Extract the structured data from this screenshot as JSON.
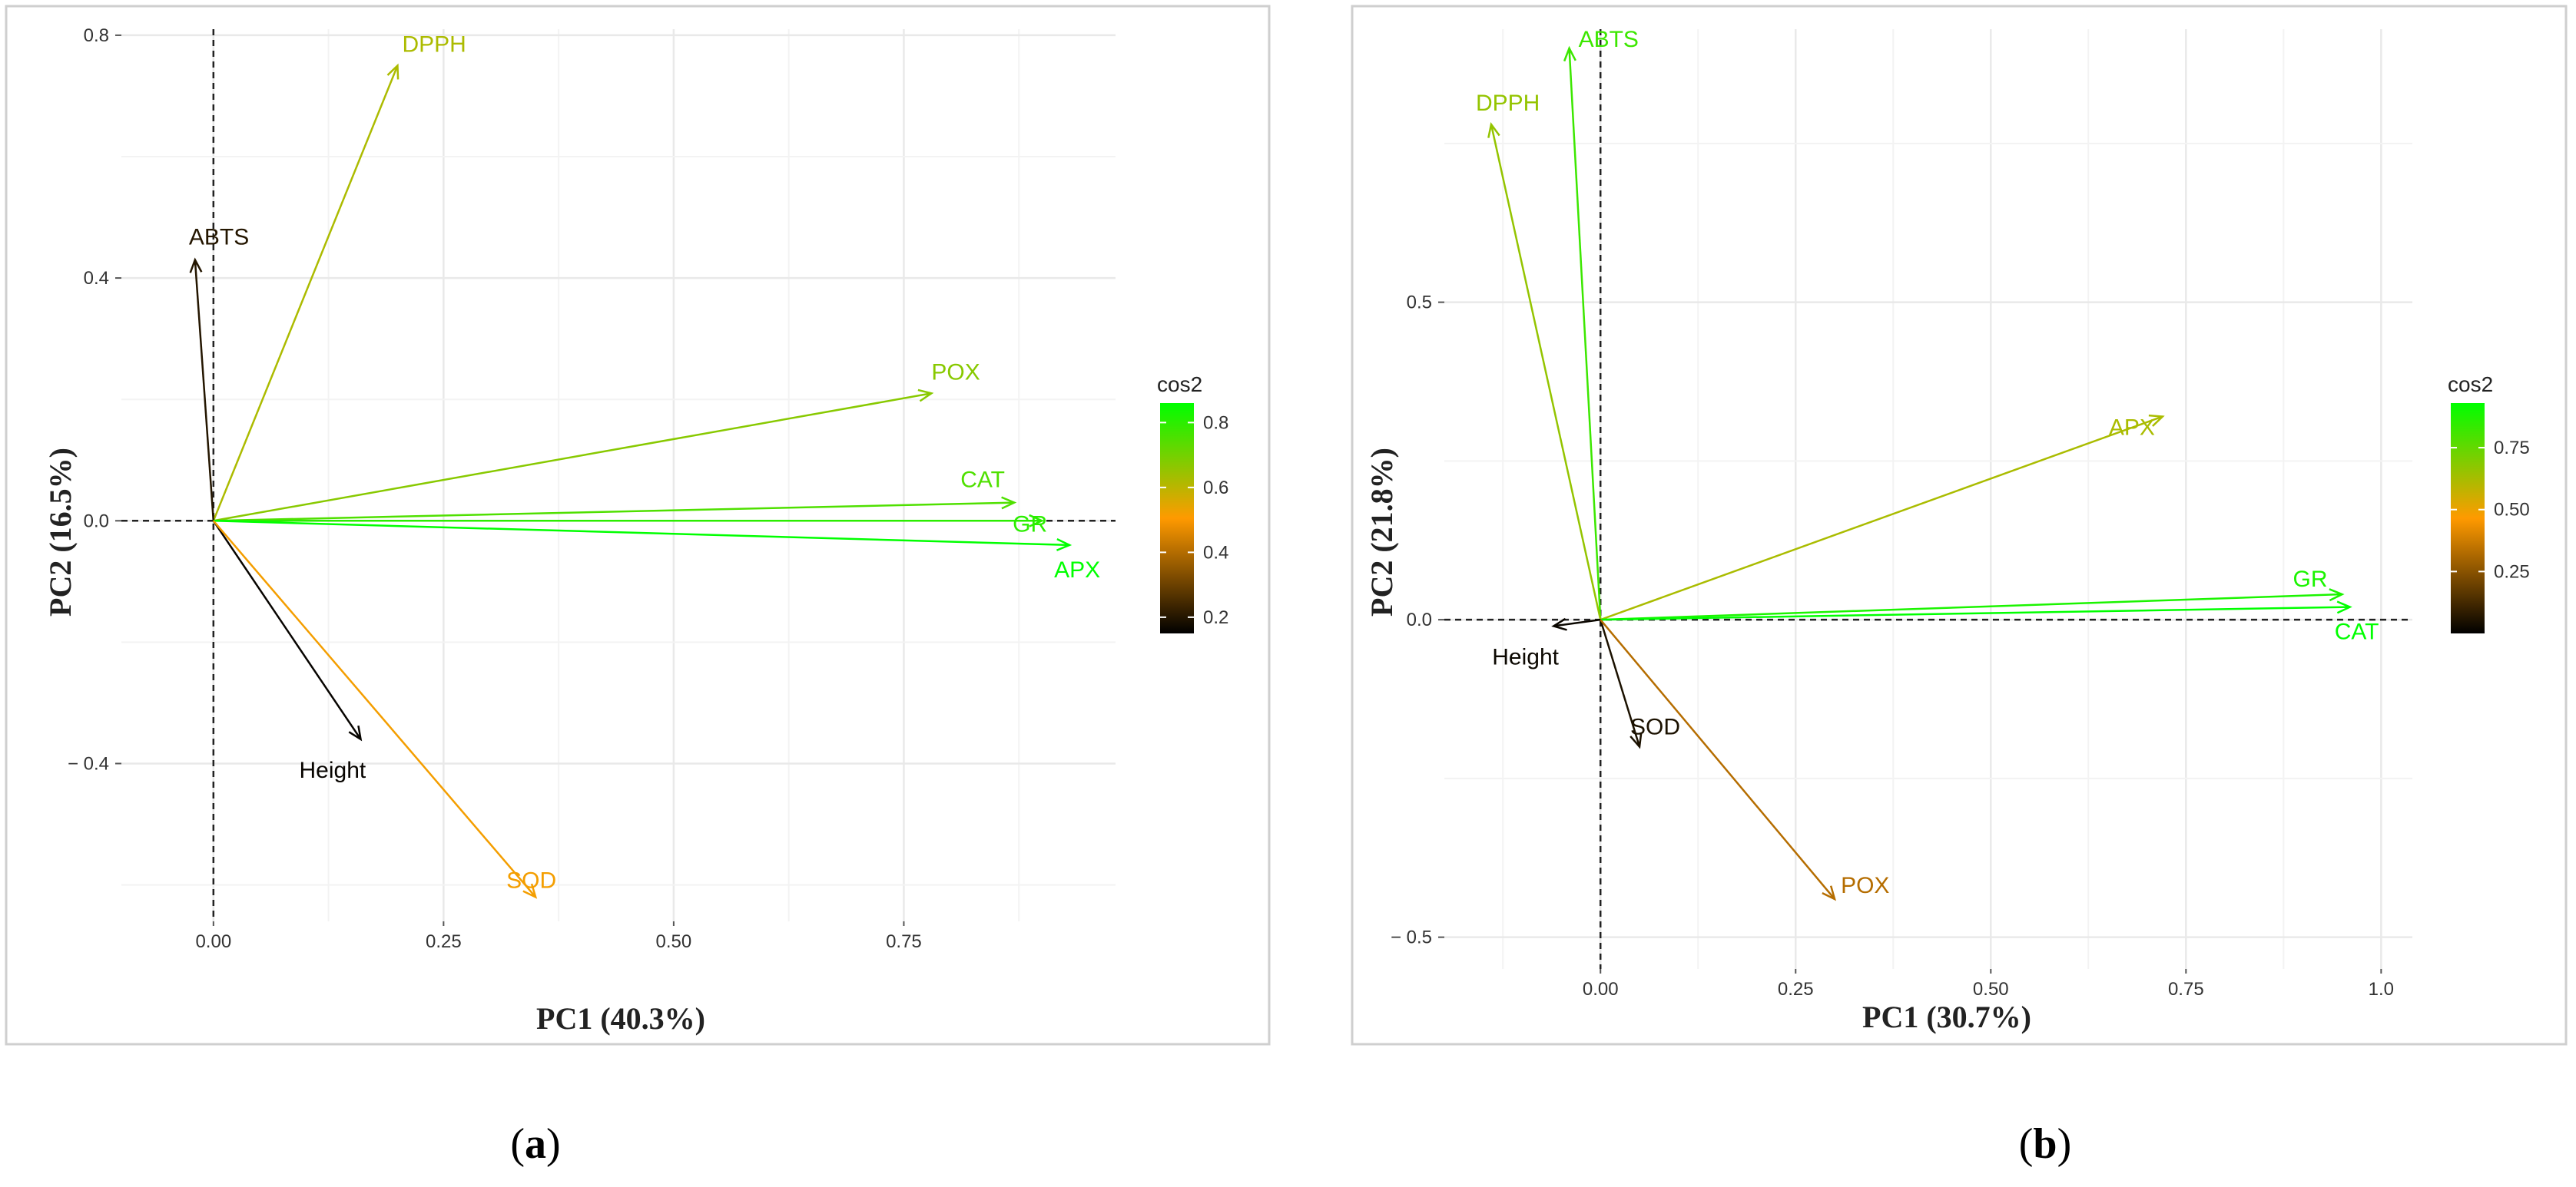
{
  "chart_data": [
    {
      "type": "biplot",
      "panel_label": "(a)",
      "panel_letter": "a",
      "xlabel": "PC1 (40.3%)",
      "ylabel": "PC2 (16.5%)",
      "xlim": [
        -0.1,
        0.98
      ],
      "ylim": [
        -0.66,
        0.81
      ],
      "x_ticks": [
        {
          "value": 0.0,
          "label": "0.00"
        },
        {
          "value": 0.25,
          "label": "0.25"
        },
        {
          "value": 0.5,
          "label": "0.50"
        },
        {
          "value": 0.75,
          "label": "0.75"
        }
      ],
      "y_ticks": [
        {
          "value": 0.8,
          "label": "0.8"
        },
        {
          "value": 0.4,
          "label": "0.4"
        },
        {
          "value": 0.0,
          "label": "0.0"
        },
        {
          "value": -0.4,
          "label": "− 0.4"
        }
      ],
      "legend": {
        "title": "cos2",
        "range": [
          0.15,
          0.86
        ],
        "ticks": [
          {
            "value": 0.2,
            "label": "0.2"
          },
          {
            "value": 0.4,
            "label": "0.4"
          },
          {
            "value": 0.6,
            "label": "0.6"
          },
          {
            "value": 0.8,
            "label": "0.8"
          }
        ]
      },
      "variables": [
        {
          "name": "DPPH",
          "x": 0.2,
          "y": 0.75,
          "cos2": 0.62
        },
        {
          "name": "ABTS",
          "x": -0.02,
          "y": 0.43,
          "cos2": 0.2
        },
        {
          "name": "POX",
          "x": 0.78,
          "y": 0.21,
          "cos2": 0.67
        },
        {
          "name": "CAT",
          "x": 0.87,
          "y": 0.03,
          "cos2": 0.75
        },
        {
          "name": "GR",
          "x": 0.9,
          "y": 0.0,
          "cos2": 0.8
        },
        {
          "name": "APX",
          "x": 0.93,
          "y": -0.04,
          "cos2": 0.86
        },
        {
          "name": "Height",
          "x": 0.16,
          "y": -0.36,
          "cos2": 0.16
        },
        {
          "name": "SOD",
          "x": 0.35,
          "y": -0.62,
          "cos2": 0.52
        }
      ]
    },
    {
      "type": "biplot",
      "panel_label": "(b)",
      "panel_letter": "b",
      "xlabel": "PC1 (30.7%)",
      "ylabel": "PC2 (21.8%)",
      "xlim": [
        -0.2,
        1.04
      ],
      "ylim": [
        -0.55,
        0.93
      ],
      "x_ticks": [
        {
          "value": 0.0,
          "label": "0.00"
        },
        {
          "value": 0.25,
          "label": "0.25"
        },
        {
          "value": 0.5,
          "label": "0.50"
        },
        {
          "value": 0.75,
          "label": "0.75"
        },
        {
          "value": 1.0,
          "label": "1.0"
        }
      ],
      "y_ticks": [
        {
          "value": 0.5,
          "label": "0.5"
        },
        {
          "value": 0.0,
          "label": "0.0"
        },
        {
          "value": -0.5,
          "label": "− 0.5"
        }
      ],
      "legend": {
        "title": "cos2",
        "range": [
          0.0,
          0.93
        ],
        "ticks": [
          {
            "value": 0.25,
            "label": "0.25"
          },
          {
            "value": 0.5,
            "label": "0.50"
          },
          {
            "value": 0.75,
            "label": "0.75"
          }
        ]
      },
      "variables": [
        {
          "name": "ABTS",
          "x": -0.04,
          "y": 0.9,
          "cos2": 0.82
        },
        {
          "name": "DPPH",
          "x": -0.14,
          "y": 0.78,
          "cos2": 0.66
        },
        {
          "name": "APX",
          "x": 0.72,
          "y": 0.32,
          "cos2": 0.62
        },
        {
          "name": "GR",
          "x": 0.95,
          "y": 0.04,
          "cos2": 0.88
        },
        {
          "name": "CAT",
          "x": 0.96,
          "y": 0.02,
          "cos2": 0.93
        },
        {
          "name": "Height",
          "x": -0.06,
          "y": -0.01,
          "cos2": 0.02
        },
        {
          "name": "SOD",
          "x": 0.05,
          "y": -0.2,
          "cos2": 0.05
        },
        {
          "name": "POX",
          "x": 0.3,
          "y": -0.44,
          "cos2": 0.33
        }
      ]
    }
  ]
}
